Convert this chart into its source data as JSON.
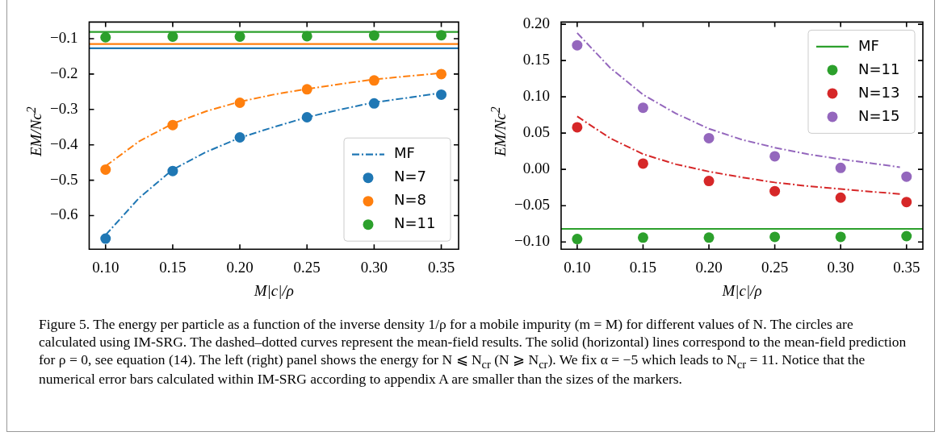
{
  "chart_data": [
    {
      "type": "scatter",
      "xlabel": "M|c|/ρ",
      "ylabel": "EM/Nc$^{2}$",
      "xlim": [
        0.0878,
        0.3629
      ],
      "ylim": [
        -0.695,
        -0.053
      ],
      "xticks": [
        {
          "value": 0.1,
          "label": "0.10"
        },
        {
          "value": 0.15,
          "label": "0.15"
        },
        {
          "value": 0.2,
          "label": "0.20"
        },
        {
          "value": 0.25,
          "label": "0.25"
        },
        {
          "value": 0.3,
          "label": "0.30"
        },
        {
          "value": 0.35,
          "label": "0.35"
        }
      ],
      "yticks": [
        {
          "value": -0.6,
          "label": "−0.6"
        },
        {
          "value": -0.5,
          "label": "−0.5"
        },
        {
          "value": -0.4,
          "label": "−0.4"
        },
        {
          "value": -0.3,
          "label": "−0.3"
        },
        {
          "value": -0.2,
          "label": "−0.2"
        },
        {
          "value": -0.1,
          "label": "−0.1"
        }
      ],
      "grid": false,
      "legend": "bottom right",
      "marker": "circle",
      "ref_lines": [
        {
          "axis": "y",
          "value": -0.081,
          "color": "#2ca02c",
          "line_style": "solid"
        },
        {
          "axis": "y",
          "value": -0.115,
          "color": "#ff7f0e",
          "line_style": "solid"
        },
        {
          "axis": "y",
          "value": -0.127,
          "color": "#1f77b4",
          "line_style": "solid"
        }
      ],
      "annotations": [
        "Figure 5. The energy per particle as a function of the inverse density 1/ρ for a mobile impurity (m = M) for different values of N. The circles are calculated using IM-SRG. The dashed–dotted curves represent the mean-field results. The solid (horizontal) lines correspond to the mean-field prediction for ρ = 0, see equation (14). The left (right) panel shows the energy for N ⩽ N$_{cr}$ (N ⩾ N$_{cr}$). We fix α = −5 which leads to N$_{cr}$ = 11. Notice that the numerical error bars calculated within IM-SRG according to appendix A are smaller than the sizes of the markers."
      ],
      "series": [
        {
          "name": "MF",
          "type": "line",
          "marker": "none",
          "line_style": "dashed",
          "color": "#1f77b4",
          "x": [
            0.1,
            0.125,
            0.15,
            0.175,
            0.2,
            0.225,
            0.25,
            0.275,
            0.3,
            0.325,
            0.35
          ],
          "values": [
            -0.655,
            -0.55,
            -0.47,
            -0.42,
            -0.38,
            -0.35,
            -0.322,
            -0.3,
            -0.28,
            -0.267,
            -0.253
          ]
        },
        {
          "type": "line",
          "marker": "none",
          "line_style": "dashed",
          "color": "#ff7f0e",
          "x": [
            0.1,
            0.125,
            0.15,
            0.175,
            0.2,
            0.225,
            0.25,
            0.275,
            0.3,
            0.325,
            0.35
          ],
          "values": [
            -0.46,
            -0.39,
            -0.34,
            -0.305,
            -0.278,
            -0.258,
            -0.242,
            -0.228,
            -0.215,
            -0.206,
            -0.197
          ]
        },
        {
          "name": "N=7",
          "color": "#1f77b4",
          "x": [
            0.1,
            0.15,
            0.2,
            0.25,
            0.3,
            0.35
          ],
          "values": [
            -0.665,
            -0.474,
            -0.379,
            -0.322,
            -0.283,
            -0.258
          ]
        },
        {
          "name": "N=8",
          "color": "#ff7f0e",
          "x": [
            0.1,
            0.15,
            0.2,
            0.25,
            0.3,
            0.35
          ],
          "values": [
            -0.47,
            -0.344,
            -0.281,
            -0.243,
            -0.218,
            -0.2
          ]
        },
        {
          "name": "N=11",
          "color": "#2ca02c",
          "x": [
            0.1,
            0.15,
            0.2,
            0.25,
            0.3,
            0.35
          ],
          "values": [
            -0.096,
            -0.094,
            -0.094,
            -0.093,
            -0.091,
            -0.09
          ]
        }
      ]
    },
    {
      "type": "scatter",
      "xlabel": "M|c|/ρ",
      "ylabel": "EM/Nc$^{2}$",
      "xlim": [
        0.0878,
        0.3624
      ],
      "ylim": [
        -0.11,
        0.203
      ],
      "xticks": [
        {
          "value": 0.1,
          "label": "0.10"
        },
        {
          "value": 0.15,
          "label": "0.15"
        },
        {
          "value": 0.2,
          "label": "0.20"
        },
        {
          "value": 0.25,
          "label": "0.25"
        },
        {
          "value": 0.3,
          "label": "0.30"
        },
        {
          "value": 0.35,
          "label": "0.35"
        }
      ],
      "yticks": [
        {
          "value": -0.1,
          "label": "−0.10"
        },
        {
          "value": -0.05,
          "label": "−0.05"
        },
        {
          "value": 0,
          "label": "0.00"
        },
        {
          "value": 0.05,
          "label": "0.05"
        },
        {
          "value": 0.1,
          "label": "0.10"
        },
        {
          "value": 0.15,
          "label": "0.15"
        },
        {
          "value": 0.2,
          "label": "0.20"
        }
      ],
      "grid": false,
      "legend": "top right",
      "marker": "circle",
      "series": [
        {
          "name": "MF",
          "type": "line",
          "marker": "none",
          "line_style": "solid",
          "color": "#2ca02c",
          "x": [
            0.0878,
            0.3624
          ],
          "values": [
            -0.082,
            -0.082
          ]
        },
        {
          "type": "line",
          "marker": "none",
          "line_style": "dashed",
          "color": "#d62728",
          "x": [
            0.1,
            0.125,
            0.15,
            0.175,
            0.2,
            0.225,
            0.25,
            0.275,
            0.3,
            0.325,
            0.345
          ],
          "values": [
            0.073,
            0.043,
            0.021,
            0.007,
            -0.003,
            -0.011,
            -0.018,
            -0.023,
            -0.027,
            -0.031,
            -0.034
          ]
        },
        {
          "type": "line",
          "marker": "none",
          "line_style": "dashed",
          "color": "#9467bd",
          "x": [
            0.1,
            0.125,
            0.15,
            0.175,
            0.2,
            0.225,
            0.25,
            0.275,
            0.3,
            0.325,
            0.345
          ],
          "values": [
            0.188,
            0.14,
            0.103,
            0.077,
            0.056,
            0.041,
            0.03,
            0.021,
            0.014,
            0.008,
            0.003
          ]
        },
        {
          "name": "N=11",
          "color": "#2ca02c",
          "x": [
            0.1,
            0.15,
            0.2,
            0.25,
            0.3,
            0.35
          ],
          "values": [
            -0.096,
            -0.094,
            -0.094,
            -0.093,
            -0.093,
            -0.092
          ]
        },
        {
          "name": "N=13",
          "color": "#d62728",
          "x": [
            0.1,
            0.15,
            0.2,
            0.25,
            0.3,
            0.35
          ],
          "values": [
            0.058,
            0.008,
            -0.016,
            -0.03,
            -0.039,
            -0.045
          ]
        },
        {
          "name": "N=15",
          "color": "#9467bd",
          "x": [
            0.1,
            0.15,
            0.2,
            0.25,
            0.3,
            0.35
          ],
          "values": [
            0.171,
            0.085,
            0.043,
            0.018,
            0.002,
            -0.01
          ]
        }
      ]
    }
  ]
}
